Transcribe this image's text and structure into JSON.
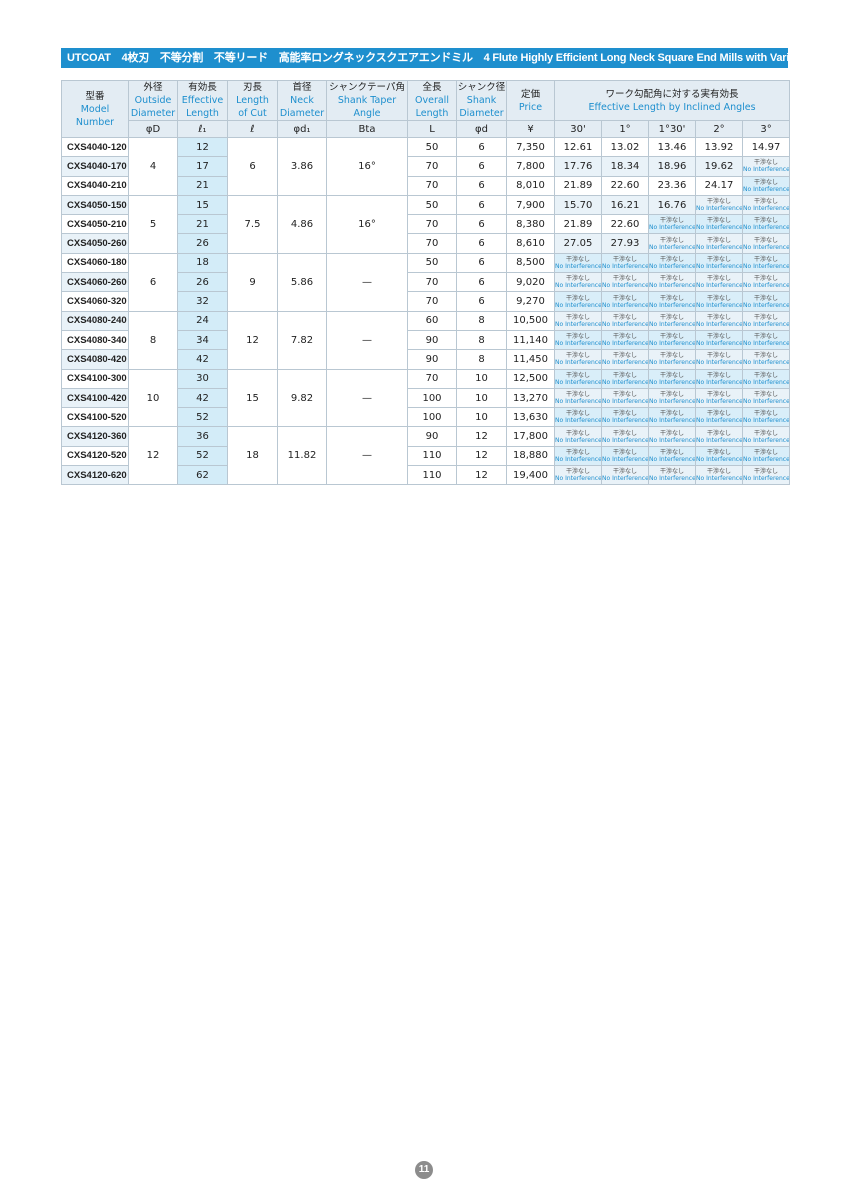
{
  "header": {
    "title": "UTCOAT　4枚刃　不等分割　不等リード　高能率ロングネックスクエアエンドミル　4 Flute Highly Efficient Long Neck Square End Mills with Variable Pitch and Helix"
  },
  "table": {
    "columns": [
      {
        "jp": "型番",
        "en": [
          "Model",
          "Number"
        ]
      },
      {
        "jp": "外径",
        "en": [
          "Outside",
          "Diameter"
        ],
        "symbol": "φD"
      },
      {
        "jp": "有効長",
        "en": [
          "Effective",
          "Length"
        ],
        "symbol": "ℓ₁"
      },
      {
        "jp": "刃長",
        "en": [
          "Length",
          "of Cut"
        ],
        "symbol": "ℓ"
      },
      {
        "jp": "首径",
        "en": [
          "Neck",
          "Diameter"
        ],
        "symbol": "φd₁"
      },
      {
        "jp": "シャンクテーパ角",
        "en": [
          "Shank Taper",
          "Angle"
        ],
        "symbol": "Bta"
      },
      {
        "jp": "全長",
        "en": [
          "Overall",
          "Length"
        ],
        "symbol": "L"
      },
      {
        "jp": "シャンク径",
        "en": [
          "Shank",
          "Diameter"
        ],
        "symbol": "φd"
      },
      {
        "jp": "定価",
        "en": [
          "Price"
        ],
        "symbol": "¥"
      }
    ],
    "angle_header": {
      "jp": "ワーク勾配角に対する実有効長",
      "en": "Effective Length by Inclined Angles",
      "angles": [
        "30'",
        "1°",
        "1°30'",
        "2°",
        "3°"
      ]
    },
    "no_interference": {
      "jp": "干渉なし",
      "en": "No Interference"
    },
    "groups": [
      {
        "diameter": "4",
        "length_of_cut": "6",
        "neck_diameter": "3.86",
        "taper": "16°",
        "rows": [
          {
            "model": "CXS4040-120",
            "effective_length": "12",
            "overall_length": "50",
            "shank_diameter": "6",
            "price": "7,350",
            "angles": [
              "12.61",
              "13.02",
              "13.46",
              "13.92",
              "14.97"
            ]
          },
          {
            "model": "CXS4040-170",
            "effective_length": "17",
            "overall_length": "70",
            "shank_diameter": "6",
            "price": "7,800",
            "angles": [
              "17.76",
              "18.34",
              "18.96",
              "19.62",
              null
            ]
          },
          {
            "model": "CXS4040-210",
            "effective_length": "21",
            "overall_length": "70",
            "shank_diameter": "6",
            "price": "8,010",
            "angles": [
              "21.89",
              "22.60",
              "23.36",
              "24.17",
              null
            ]
          }
        ]
      },
      {
        "diameter": "5",
        "length_of_cut": "7.5",
        "neck_diameter": "4.86",
        "taper": "16°",
        "rows": [
          {
            "model": "CXS4050-150",
            "effective_length": "15",
            "overall_length": "50",
            "shank_diameter": "6",
            "price": "7,900",
            "angles": [
              "15.70",
              "16.21",
              "16.76",
              null,
              null
            ]
          },
          {
            "model": "CXS4050-210",
            "effective_length": "21",
            "overall_length": "70",
            "shank_diameter": "6",
            "price": "8,380",
            "angles": [
              "21.89",
              "22.60",
              null,
              null,
              null
            ]
          },
          {
            "model": "CXS4050-260",
            "effective_length": "26",
            "overall_length": "70",
            "shank_diameter": "6",
            "price": "8,610",
            "angles": [
              "27.05",
              "27.93",
              null,
              null,
              null
            ]
          }
        ]
      },
      {
        "diameter": "6",
        "length_of_cut": "9",
        "neck_diameter": "5.86",
        "taper": "—",
        "rows": [
          {
            "model": "CXS4060-180",
            "effective_length": "18",
            "overall_length": "50",
            "shank_diameter": "6",
            "price": "8,500",
            "angles": [
              null,
              null,
              null,
              null,
              null
            ]
          },
          {
            "model": "CXS4060-260",
            "effective_length": "26",
            "overall_length": "70",
            "shank_diameter": "6",
            "price": "9,020",
            "angles": [
              null,
              null,
              null,
              null,
              null
            ]
          },
          {
            "model": "CXS4060-320",
            "effective_length": "32",
            "overall_length": "70",
            "shank_diameter": "6",
            "price": "9,270",
            "angles": [
              null,
              null,
              null,
              null,
              null
            ]
          }
        ]
      },
      {
        "diameter": "8",
        "length_of_cut": "12",
        "neck_diameter": "7.82",
        "taper": "—",
        "rows": [
          {
            "model": "CXS4080-240",
            "effective_length": "24",
            "overall_length": "60",
            "shank_diameter": "8",
            "price": "10,500",
            "angles": [
              null,
              null,
              null,
              null,
              null
            ]
          },
          {
            "model": "CXS4080-340",
            "effective_length": "34",
            "overall_length": "90",
            "shank_diameter": "8",
            "price": "11,140",
            "angles": [
              null,
              null,
              null,
              null,
              null
            ]
          },
          {
            "model": "CXS4080-420",
            "effective_length": "42",
            "overall_length": "90",
            "shank_diameter": "8",
            "price": "11,450",
            "angles": [
              null,
              null,
              null,
              null,
              null
            ]
          }
        ]
      },
      {
        "diameter": "10",
        "length_of_cut": "15",
        "neck_diameter": "9.82",
        "taper": "—",
        "rows": [
          {
            "model": "CXS4100-300",
            "effective_length": "30",
            "overall_length": "70",
            "shank_diameter": "10",
            "price": "12,500",
            "angles": [
              null,
              null,
              null,
              null,
              null
            ]
          },
          {
            "model": "CXS4100-420",
            "effective_length": "42",
            "overall_length": "100",
            "shank_diameter": "10",
            "price": "13,270",
            "angles": [
              null,
              null,
              null,
              null,
              null
            ]
          },
          {
            "model": "CXS4100-520",
            "effective_length": "52",
            "overall_length": "100",
            "shank_diameter": "10",
            "price": "13,630",
            "angles": [
              null,
              null,
              null,
              null,
              null
            ]
          }
        ]
      },
      {
        "diameter": "12",
        "length_of_cut": "18",
        "neck_diameter": "11.82",
        "taper": "—",
        "rows": [
          {
            "model": "CXS4120-360",
            "effective_length": "36",
            "overall_length": "90",
            "shank_diameter": "12",
            "price": "17,800",
            "angles": [
              null,
              null,
              null,
              null,
              null
            ]
          },
          {
            "model": "CXS4120-520",
            "effective_length": "52",
            "overall_length": "110",
            "shank_diameter": "12",
            "price": "18,880",
            "angles": [
              null,
              null,
              null,
              null,
              null
            ]
          },
          {
            "model": "CXS4120-620",
            "effective_length": "62",
            "overall_length": "110",
            "shank_diameter": "12",
            "price": "19,400",
            "angles": [
              null,
              null,
              null,
              null,
              null
            ]
          }
        ]
      }
    ]
  },
  "footer": {
    "page_number": "11"
  }
}
